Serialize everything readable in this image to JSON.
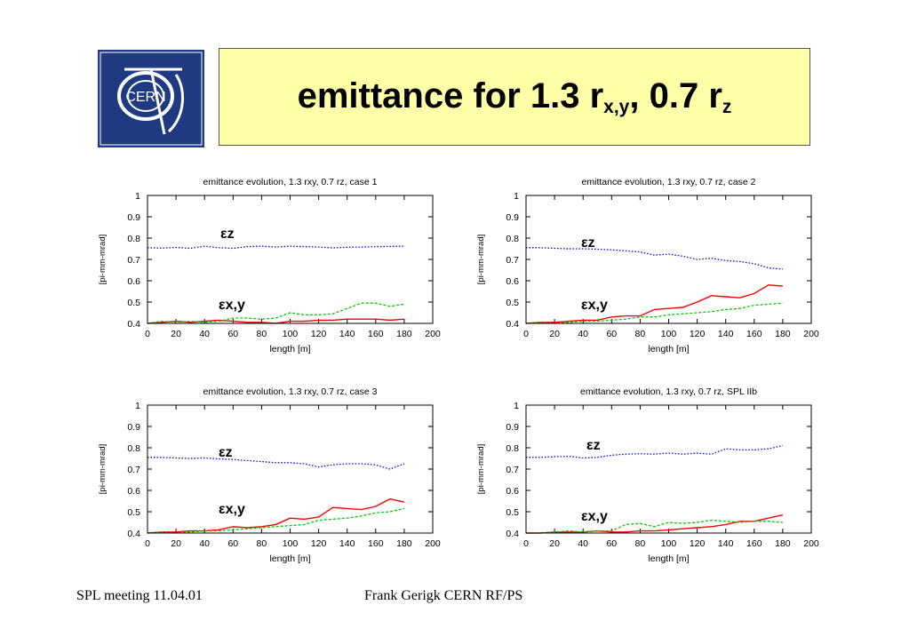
{
  "logo": {
    "text": "CERN"
  },
  "title": {
    "main": "emittance for 1.3 r",
    "sub1": "x,y",
    "mid": ", 0.7 r",
    "sub2": "z"
  },
  "footer": {
    "left": "SPL meeting 11.04.01",
    "center": "Frank Gerigk CERN RF/PS"
  },
  "colors": {
    "ez": "#0000ff",
    "ex": "#ff0000",
    "ey": "#00cc00"
  },
  "chart_data": [
    {
      "type": "line",
      "title": "emittance evolution, 1.3 rxy, 0.7 rz, case 1",
      "xlabel": "length [m]",
      "ylabel": "[pi-mm-mrad]",
      "xlim": [
        0,
        200
      ],
      "ylim": [
        0.4,
        1
      ],
      "xticks": [
        "0",
        "20",
        "40",
        "60",
        "80",
        "100",
        "120",
        "140",
        "160",
        "180",
        "200"
      ],
      "yticks": [
        "0.4",
        "0.5",
        "0.6",
        "0.7",
        "0.8",
        "0.9",
        "1"
      ],
      "annotations": {
        "ez": "εz",
        "exy": "εx,y"
      },
      "x": [
        0,
        10,
        20,
        30,
        40,
        50,
        60,
        70,
        80,
        90,
        100,
        110,
        120,
        130,
        140,
        150,
        160,
        170,
        180
      ],
      "series": [
        {
          "values": [
            0.755,
            0.753,
            0.756,
            0.752,
            0.762,
            0.755,
            0.752,
            0.76,
            0.762,
            0.758,
            0.762,
            0.76,
            0.758,
            0.754,
            0.757,
            0.758,
            0.76,
            0.761,
            0.762
          ],
          "color": "#0000ff",
          "style": "dotted"
        },
        {
          "values": [
            0.4,
            0.405,
            0.41,
            0.405,
            0.41,
            0.415,
            0.41,
            0.405,
            0.405,
            0.4,
            0.41,
            0.41,
            0.415,
            0.415,
            0.42,
            0.42,
            0.42,
            0.415,
            0.42
          ],
          "color": "#ff0000",
          "style": "solid"
        },
        {
          "values": [
            0.4,
            0.41,
            0.405,
            0.41,
            0.405,
            0.41,
            0.425,
            0.425,
            0.42,
            0.425,
            0.45,
            0.44,
            0.44,
            0.445,
            0.47,
            0.495,
            0.495,
            0.48,
            0.49
          ],
          "color": "#00cc00",
          "style": "dashed"
        }
      ]
    },
    {
      "type": "line",
      "title": "emittance evolution, 1.3 rxy, 0.7 rz, case 2",
      "xlabel": "length [m]",
      "ylabel": "[pi-mm-mrad]",
      "xlim": [
        0,
        200
      ],
      "ylim": [
        0.4,
        1
      ],
      "xticks": [
        "0",
        "20",
        "40",
        "60",
        "80",
        "100",
        "120",
        "140",
        "160",
        "180",
        "200"
      ],
      "yticks": [
        "0.4",
        "0.5",
        "0.6",
        "0.7",
        "0.8",
        "0.9",
        "1"
      ],
      "annotations": {
        "ez": "εz",
        "exy": "εx,y"
      },
      "x": [
        0,
        10,
        20,
        30,
        40,
        50,
        60,
        70,
        80,
        90,
        100,
        110,
        120,
        130,
        140,
        150,
        160,
        170,
        180
      ],
      "series": [
        {
          "values": [
            0.755,
            0.755,
            0.752,
            0.75,
            0.75,
            0.748,
            0.745,
            0.74,
            0.735,
            0.72,
            0.725,
            0.715,
            0.7,
            0.705,
            0.695,
            0.69,
            0.68,
            0.66,
            0.655
          ],
          "color": "#0000ff",
          "style": "dotted"
        },
        {
          "values": [
            0.4,
            0.405,
            0.405,
            0.41,
            0.415,
            0.415,
            0.43,
            0.435,
            0.435,
            0.465,
            0.47,
            0.475,
            0.5,
            0.53,
            0.525,
            0.52,
            0.54,
            0.58,
            0.575
          ],
          "color": "#ff0000",
          "style": "solid"
        },
        {
          "values": [
            0.4,
            0.405,
            0.4,
            0.405,
            0.41,
            0.41,
            0.415,
            0.42,
            0.43,
            0.43,
            0.44,
            0.445,
            0.45,
            0.455,
            0.465,
            0.47,
            0.485,
            0.49,
            0.495
          ],
          "color": "#00cc00",
          "style": "dashed"
        }
      ]
    },
    {
      "type": "line",
      "title": "emittance evolution, 1.3 rxy, 0.7 rz, case 3",
      "xlabel": "length [m]",
      "ylabel": "[pi-mm-mrad]",
      "xlim": [
        0,
        200
      ],
      "ylim": [
        0.4,
        1
      ],
      "xticks": [
        "0",
        "20",
        "40",
        "60",
        "80",
        "100",
        "120",
        "140",
        "160",
        "180",
        "200"
      ],
      "yticks": [
        "0.4",
        "0.5",
        "0.6",
        "0.7",
        "0.8",
        "0.9",
        "1"
      ],
      "annotations": {
        "ez": "εz",
        "exy": "εx,y"
      },
      "x": [
        0,
        10,
        20,
        30,
        40,
        50,
        60,
        70,
        80,
        90,
        100,
        110,
        120,
        130,
        140,
        150,
        160,
        170,
        180
      ],
      "series": [
        {
          "values": [
            0.755,
            0.755,
            0.752,
            0.75,
            0.752,
            0.748,
            0.745,
            0.74,
            0.735,
            0.73,
            0.73,
            0.725,
            0.71,
            0.72,
            0.725,
            0.725,
            0.72,
            0.7,
            0.725
          ],
          "color": "#0000ff",
          "style": "dotted"
        },
        {
          "values": [
            0.4,
            0.405,
            0.405,
            0.41,
            0.41,
            0.415,
            0.43,
            0.425,
            0.43,
            0.44,
            0.47,
            0.465,
            0.475,
            0.52,
            0.515,
            0.51,
            0.525,
            0.56,
            0.545
          ],
          "color": "#ff0000",
          "style": "solid"
        },
        {
          "values": [
            0.4,
            0.405,
            0.4,
            0.405,
            0.41,
            0.41,
            0.415,
            0.42,
            0.425,
            0.43,
            0.435,
            0.44,
            0.46,
            0.465,
            0.47,
            0.48,
            0.495,
            0.5,
            0.515
          ],
          "color": "#00cc00",
          "style": "dashed"
        }
      ]
    },
    {
      "type": "line",
      "title": "emittance evolution, 1.3 rxy, 0.7 rz, SPL IIb",
      "xlabel": "length [m]",
      "ylabel": "[pi-mm-mrad]",
      "xlim": [
        0,
        200
      ],
      "ylim": [
        0.4,
        1
      ],
      "xticks": [
        "0",
        "20",
        "40",
        "60",
        "80",
        "100",
        "120",
        "140",
        "160",
        "180",
        "200"
      ],
      "yticks": [
        "0.4",
        "0.5",
        "0.6",
        "0.7",
        "0.8",
        "0.9",
        "1"
      ],
      "annotations": {
        "ez": "εz",
        "exy": "εx,y"
      },
      "x": [
        0,
        10,
        20,
        30,
        40,
        50,
        60,
        70,
        80,
        90,
        100,
        110,
        120,
        130,
        140,
        150,
        160,
        170,
        180
      ],
      "series": [
        {
          "values": [
            0.755,
            0.755,
            0.758,
            0.76,
            0.752,
            0.755,
            0.765,
            0.77,
            0.772,
            0.77,
            0.775,
            0.77,
            0.775,
            0.77,
            0.795,
            0.79,
            0.79,
            0.795,
            0.81
          ],
          "color": "#0000ff",
          "style": "dotted"
        },
        {
          "values": [
            0.4,
            0.4,
            0.405,
            0.405,
            0.405,
            0.41,
            0.405,
            0.405,
            0.41,
            0.41,
            0.415,
            0.42,
            0.425,
            0.43,
            0.44,
            0.455,
            0.455,
            0.47,
            0.485
          ],
          "color": "#ff0000",
          "style": "solid"
        },
        {
          "values": [
            0.4,
            0.4,
            0.405,
            0.41,
            0.405,
            0.41,
            0.41,
            0.44,
            0.445,
            0.43,
            0.45,
            0.445,
            0.45,
            0.46,
            0.455,
            0.45,
            0.455,
            0.455,
            0.45
          ],
          "color": "#00cc00",
          "style": "dashed"
        }
      ]
    }
  ]
}
